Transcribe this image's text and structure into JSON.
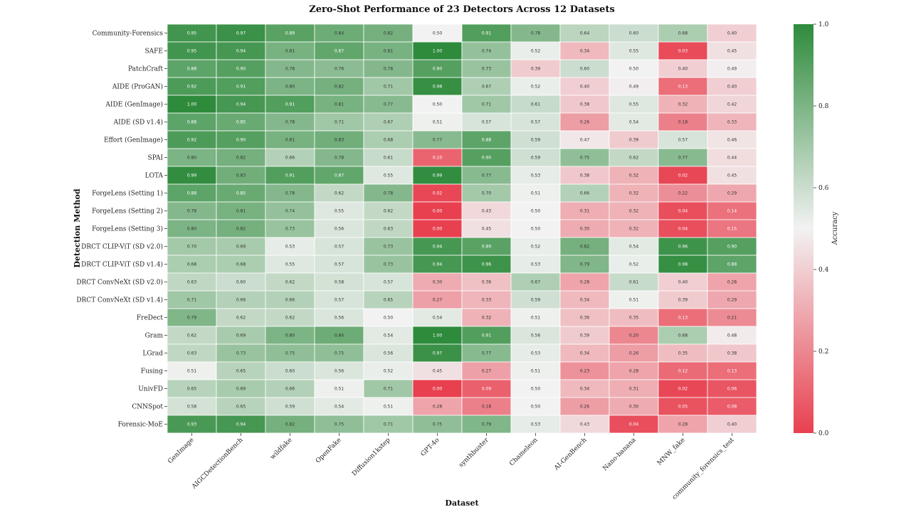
{
  "chart_data": {
    "type": "heatmap",
    "title": "Zero-Shot Performance of 23 Detectors Across 12 Datasets",
    "xlabel": "Dataset",
    "ylabel": "Detection Method",
    "colorbar_label": "Accuracy",
    "colorbar_ticks": [
      "0.0",
      "0.2",
      "0.4",
      "0.6",
      "0.8",
      "1.0"
    ],
    "vmin": 0.0,
    "vmax": 1.0,
    "colors": {
      "low": "#e8404f",
      "mid": "#f2f2f2",
      "high": "#2e8b3c"
    },
    "columns": [
      "GenImage",
      "AIGCDetectionBench",
      "wildfake",
      "OpenFake",
      "Diffusion1kstep",
      "GPT-4o",
      "synthbuster",
      "Chameleon",
      "AI-GenBench",
      "Nano-banana",
      "MNW_fake",
      "community_forensics_test"
    ],
    "rows": [
      "Community-Forensics",
      "SAFE",
      "PatchCraft",
      "AIDE (ProGAN)",
      "AIDE (GenImage)",
      "AIDE (SD v1.4)",
      "Effort (GenImage)",
      "SPAI",
      "LOTA",
      "ForgeLens (Setting 1)",
      "ForgeLens (Setting 2)",
      "ForgeLens (Setting 3)",
      "DRCT CLIP-ViT (SD v2.0)",
      "DRCT CLIP-ViT (SD v1.4)",
      "DRCT ConvNeXt (SD v2.0)",
      "DRCT ConvNeXt (SD v1.4)",
      "FreDect",
      "Gram",
      "LGrad",
      "Fusing",
      "UnivFD",
      "CNNSpot",
      "Forensic-MoE"
    ],
    "values": [
      [
        0.95,
        0.97,
        0.89,
        0.84,
        0.82,
        0.5,
        0.91,
        0.78,
        0.64,
        0.6,
        0.68,
        0.4
      ],
      [
        0.95,
        0.94,
        0.81,
        0.87,
        0.81,
        1.0,
        0.74,
        0.52,
        0.34,
        0.55,
        0.03,
        0.45
      ],
      [
        0.88,
        0.9,
        0.78,
        0.76,
        0.78,
        0.9,
        0.73,
        0.39,
        0.6,
        0.5,
        0.4,
        0.49
      ],
      [
        0.92,
        0.91,
        0.8,
        0.82,
        0.71,
        0.98,
        0.67,
        0.52,
        0.4,
        0.49,
        0.13,
        0.4
      ],
      [
        1.0,
        0.94,
        0.91,
        0.81,
        0.77,
        0.5,
        0.71,
        0.61,
        0.38,
        0.55,
        0.32,
        0.42
      ],
      [
        0.88,
        0.85,
        0.78,
        0.71,
        0.67,
        0.51,
        0.57,
        0.57,
        0.26,
        0.54,
        0.18,
        0.33
      ],
      [
        0.92,
        0.9,
        0.81,
        0.83,
        0.68,
        0.77,
        0.88,
        0.59,
        0.47,
        0.39,
        0.57,
        0.46
      ],
      [
        0.8,
        0.82,
        0.66,
        0.78,
        0.61,
        0.1,
        0.9,
        0.59,
        0.75,
        0.62,
        0.77,
        0.44
      ],
      [
        0.99,
        0.83,
        0.91,
        0.87,
        0.55,
        0.99,
        0.77,
        0.53,
        0.38,
        0.32,
        0.02,
        0.45
      ],
      [
        0.88,
        0.85,
        0.78,
        0.62,
        0.78,
        0.02,
        0.7,
        0.51,
        0.66,
        0.32,
        0.22,
        0.29
      ],
      [
        0.78,
        0.81,
        0.74,
        0.55,
        0.62,
        0.0,
        0.43,
        0.5,
        0.31,
        0.32,
        0.04,
        0.14
      ],
      [
        0.8,
        0.82,
        0.73,
        0.56,
        0.63,
        0.0,
        0.45,
        0.5,
        0.3,
        0.32,
        0.04,
        0.15
      ],
      [
        0.7,
        0.69,
        0.53,
        0.57,
        0.73,
        0.94,
        0.89,
        0.52,
        0.82,
        0.54,
        0.96,
        0.9
      ],
      [
        0.68,
        0.68,
        0.55,
        0.57,
        0.73,
        0.94,
        0.96,
        0.53,
        0.79,
        0.52,
        0.98,
        0.88
      ],
      [
        0.63,
        0.6,
        0.62,
        0.58,
        0.57,
        0.3,
        0.36,
        0.67,
        0.28,
        0.61,
        0.4,
        0.28
      ],
      [
        0.71,
        0.66,
        0.66,
        0.57,
        0.65,
        0.27,
        0.33,
        0.59,
        0.34,
        0.51,
        0.39,
        0.29
      ],
      [
        0.79,
        0.62,
        0.62,
        0.56,
        0.5,
        0.54,
        0.32,
        0.51,
        0.36,
        0.35,
        0.13,
        0.21
      ],
      [
        0.62,
        0.69,
        0.8,
        0.84,
        0.54,
        1.0,
        0.91,
        0.56,
        0.39,
        0.2,
        0.68,
        0.48
      ],
      [
        0.63,
        0.73,
        0.75,
        0.75,
        0.56,
        0.97,
        0.77,
        0.53,
        0.34,
        0.26,
        0.35,
        0.38
      ],
      [
        0.51,
        0.65,
        0.6,
        0.56,
        0.52,
        0.45,
        0.27,
        0.51,
        0.23,
        0.28,
        0.12,
        0.13
      ],
      [
        0.65,
        0.69,
        0.66,
        0.51,
        0.71,
        0.0,
        0.09,
        0.5,
        0.34,
        0.31,
        0.02,
        0.06
      ],
      [
        0.58,
        0.65,
        0.59,
        0.54,
        0.51,
        0.28,
        0.18,
        0.5,
        0.26,
        0.3,
        0.05,
        0.08
      ],
      [
        0.93,
        0.94,
        0.82,
        0.75,
        0.71,
        0.75,
        0.79,
        0.53,
        0.43,
        0.04,
        0.28,
        0.4
      ]
    ]
  }
}
